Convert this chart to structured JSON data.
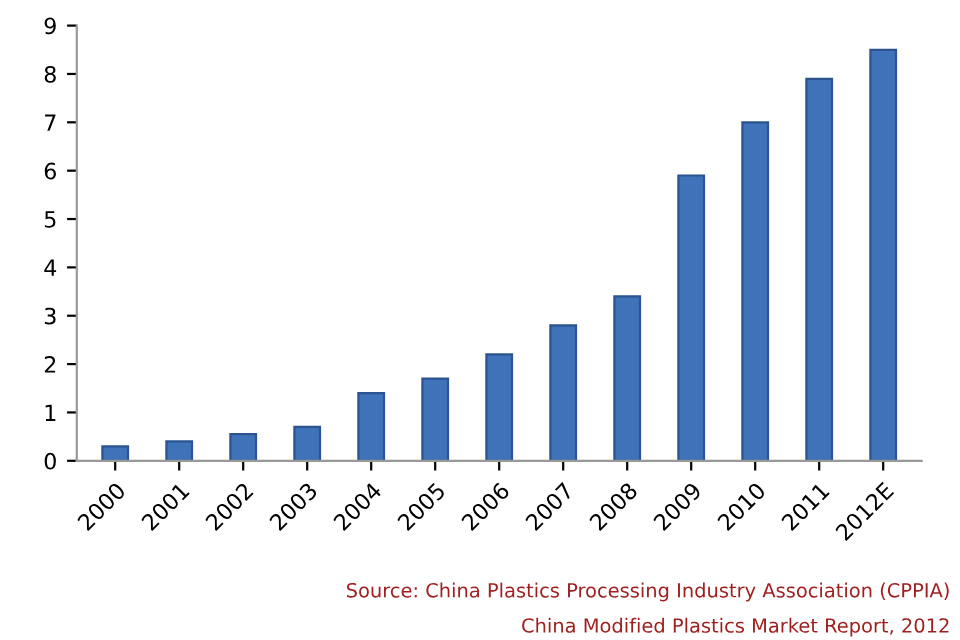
{
  "chart_data": {
    "type": "bar",
    "categories": [
      "2000",
      "2001",
      "2002",
      "2003",
      "2004",
      "2005",
      "2006",
      "2007",
      "2008",
      "2009",
      "2010",
      "2011",
      "2012E"
    ],
    "values": [
      0.3,
      0.4,
      0.55,
      0.7,
      1.4,
      1.7,
      2.2,
      2.8,
      3.4,
      5.9,
      7.0,
      7.9,
      8.5
    ],
    "color": "#3f72b8",
    "ylim": [
      0,
      9
    ],
    "yticks": [
      0,
      1,
      2,
      3,
      4,
      5,
      6,
      7,
      8,
      9
    ],
    "grid": false,
    "annotations": [
      "Source: China Plastics Processing Industry Association (CPPIA)",
      "China Modified Plastics Market Report, 2012"
    ]
  }
}
